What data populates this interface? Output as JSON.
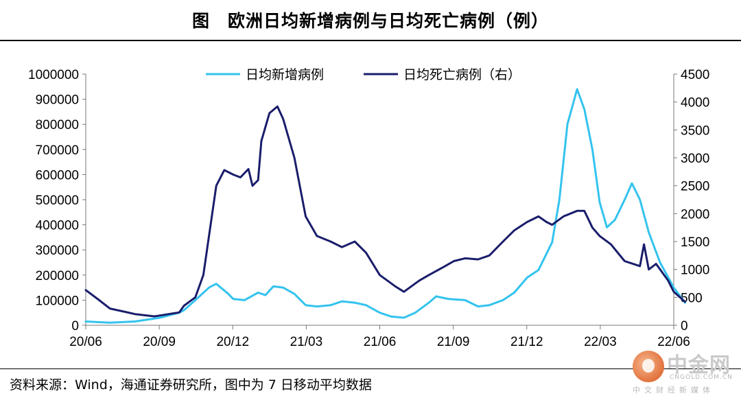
{
  "title": "图　欧洲日均新增病例与日均死亡病例（例）",
  "source": "资料来源：Wind，海通证券研究所，图中为 7 日移动平均数据",
  "watermark": {
    "name": "中金网",
    "url": "CNGOLD.COM.CN",
    "slogan": "中文财经新媒体"
  },
  "chart_data": {
    "type": "line",
    "x_ticks": [
      "20/06",
      "20/09",
      "20/12",
      "21/03",
      "21/06",
      "21/09",
      "21/12",
      "22/03",
      "22/06"
    ],
    "x_range": [
      "2020-06",
      "2022-06"
    ],
    "y_left": {
      "ylim": [
        0,
        1000000
      ],
      "ticks": [
        0,
        100000,
        200000,
        300000,
        400000,
        500000,
        600000,
        700000,
        800000,
        900000,
        1000000
      ]
    },
    "y_right": {
      "ylim": [
        0,
        4500
      ],
      "ticks": [
        0,
        500,
        1000,
        1500,
        2000,
        2500,
        3000,
        3500,
        4000,
        4500
      ]
    },
    "legend_position": "top-center",
    "series": [
      {
        "name": "日均新增病例",
        "axis": "left",
        "color": "#33c3ee",
        "points": [
          [
            "2020-06",
            15000
          ],
          [
            "2020-07",
            10000
          ],
          [
            "2020-08",
            15000
          ],
          [
            "2020-09",
            30000
          ],
          [
            "2020-09-25",
            50000
          ],
          [
            "2020-10",
            60000
          ],
          [
            "2020-10-15",
            100000
          ],
          [
            "2020-11",
            150000
          ],
          [
            "2020-11-10",
            165000
          ],
          [
            "2020-11-25",
            125000
          ],
          [
            "2020-12",
            105000
          ],
          [
            "2020-12-15",
            100000
          ],
          [
            "2021-01",
            130000
          ],
          [
            "2021-01-10",
            120000
          ],
          [
            "2021-01-20",
            155000
          ],
          [
            "2021-02",
            150000
          ],
          [
            "2021-02-15",
            125000
          ],
          [
            "2021-03",
            80000
          ],
          [
            "2021-03-15",
            75000
          ],
          [
            "2021-04",
            80000
          ],
          [
            "2021-04-15",
            95000
          ],
          [
            "2021-05",
            90000
          ],
          [
            "2021-05-15",
            80000
          ],
          [
            "2021-06",
            50000
          ],
          [
            "2021-06-15",
            35000
          ],
          [
            "2021-07",
            30000
          ],
          [
            "2021-07-15",
            50000
          ],
          [
            "2021-08",
            90000
          ],
          [
            "2021-08-10",
            115000
          ],
          [
            "2021-08-25",
            105000
          ],
          [
            "2021-09-15",
            100000
          ],
          [
            "2021-10",
            75000
          ],
          [
            "2021-10-15",
            80000
          ],
          [
            "2021-11",
            100000
          ],
          [
            "2021-11-15",
            130000
          ],
          [
            "2021-12",
            190000
          ],
          [
            "2021-12-15",
            220000
          ],
          [
            "2022-01",
            330000
          ],
          [
            "2022-01-10",
            500000
          ],
          [
            "2022-01-20",
            800000
          ],
          [
            "2022-02-01",
            940000
          ],
          [
            "2022-02-10",
            860000
          ],
          [
            "2022-02-20",
            700000
          ],
          [
            "2022-03",
            490000
          ],
          [
            "2022-03-10",
            390000
          ],
          [
            "2022-03-20",
            420000
          ],
          [
            "2022-04",
            500000
          ],
          [
            "2022-04-10",
            565000
          ],
          [
            "2022-04-20",
            500000
          ],
          [
            "2022-05",
            370000
          ],
          [
            "2022-05-15",
            250000
          ],
          [
            "2022-06-01",
            150000
          ],
          [
            "2022-06-15",
            90000
          ]
        ]
      },
      {
        "name": "日均死亡病例（右）",
        "axis": "right",
        "color": "#1a1d6b",
        "points": [
          [
            "2020-06",
            630
          ],
          [
            "2020-06-15",
            480
          ],
          [
            "2020-07",
            300
          ],
          [
            "2020-07-20",
            240
          ],
          [
            "2020-08",
            200
          ],
          [
            "2020-08-25",
            160
          ],
          [
            "2020-09",
            175
          ],
          [
            "2020-09-25",
            230
          ],
          [
            "2020-10",
            350
          ],
          [
            "2020-10-15",
            500
          ],
          [
            "2020-10-25",
            900
          ],
          [
            "2020-11",
            1600
          ],
          [
            "2020-11-10",
            2500
          ],
          [
            "2020-11-20",
            2780
          ],
          [
            "2020-12",
            2700
          ],
          [
            "2020-12-10",
            2650
          ],
          [
            "2020-12-20",
            2800
          ],
          [
            "2020-12-25",
            2500
          ],
          [
            "2021-01",
            2600
          ],
          [
            "2021-01-05",
            3300
          ],
          [
            "2021-01-15",
            3800
          ],
          [
            "2021-01-25",
            3920
          ],
          [
            "2021-02",
            3700
          ],
          [
            "2021-02-15",
            3000
          ],
          [
            "2021-03",
            1950
          ],
          [
            "2021-03-15",
            1600
          ],
          [
            "2021-04",
            1500
          ],
          [
            "2021-04-15",
            1400
          ],
          [
            "2021-05",
            1500
          ],
          [
            "2021-05-15",
            1300
          ],
          [
            "2021-06",
            900
          ],
          [
            "2021-06-20",
            700
          ],
          [
            "2021-07",
            600
          ],
          [
            "2021-07-20",
            800
          ],
          [
            "2021-08",
            900
          ],
          [
            "2021-08-20",
            1050
          ],
          [
            "2021-09",
            1150
          ],
          [
            "2021-09-15",
            1200
          ],
          [
            "2021-10",
            1180
          ],
          [
            "2021-10-15",
            1250
          ],
          [
            "2021-11",
            1500
          ],
          [
            "2021-11-15",
            1700
          ],
          [
            "2021-12",
            1850
          ],
          [
            "2021-12-15",
            1950
          ],
          [
            "2021-12-25",
            1850
          ],
          [
            "2022-01",
            1800
          ],
          [
            "2022-01-15",
            1950
          ],
          [
            "2022-02-01",
            2050
          ],
          [
            "2022-02-10",
            2050
          ],
          [
            "2022-02-20",
            1750
          ],
          [
            "2022-03",
            1600
          ],
          [
            "2022-03-15",
            1450
          ],
          [
            "2022-04",
            1150
          ],
          [
            "2022-04-20",
            1060
          ],
          [
            "2022-04-25",
            1450
          ],
          [
            "2022-05-01",
            1000
          ],
          [
            "2022-05-10",
            1100
          ],
          [
            "2022-05-25",
            800
          ],
          [
            "2022-06-01",
            600
          ],
          [
            "2022-06-15",
            420
          ]
        ]
      }
    ]
  }
}
